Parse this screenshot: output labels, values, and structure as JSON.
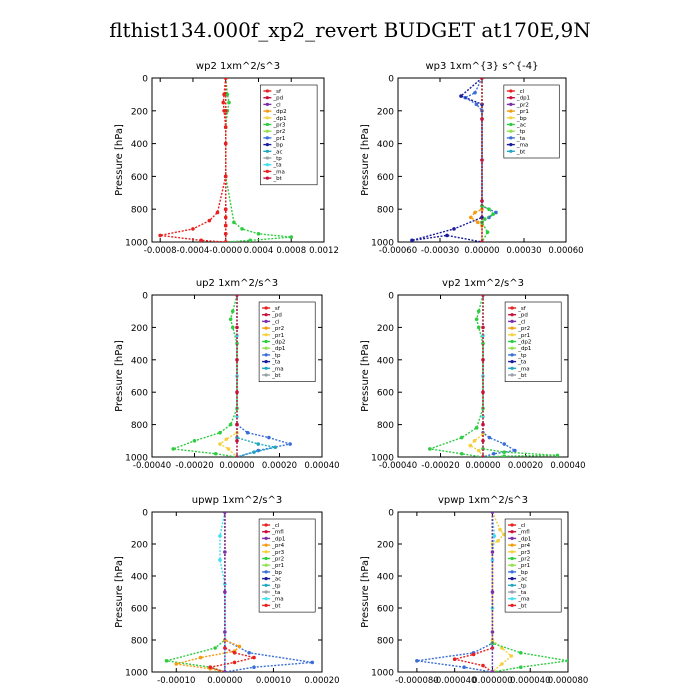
{
  "title": "flthist134.000f_xp2_revert  BUDGET at170E,9N",
  "colors": {
    "red": "#e8201f",
    "darkred": "#c8103a",
    "purple": "#7b2fa8",
    "orange": "#f39c12",
    "yellow": "#f4d03f",
    "green": "#2ecc40",
    "lightgreen": "#90e050",
    "blue": "#3a6fd8",
    "navy": "#1a1a9c",
    "teal": "#20a8c0",
    "cyan": "#40e0f0",
    "gray": "#9aa0a6"
  },
  "chart_data": [
    {
      "type": "line",
      "title": "wp2   1xm^2/s^3",
      "ylabel": "Pressure  [hPa]",
      "ylim": [
        1000,
        0
      ],
      "yticks": [
        "0",
        "200",
        "400",
        "600",
        "800",
        "1000"
      ],
      "xlim": [
        -0.0009,
        0.0012
      ],
      "xticks": [
        -0.0008,
        -0.0004,
        0.0,
        0.0004,
        0.0008,
        0.0012
      ],
      "xticklabels": [
        "-0.0008",
        "-0.0004",
        "-0.0000",
        "0.0004",
        "0.0008",
        "0.0012"
      ],
      "legend": [
        "_sf",
        "_pd",
        "_cl",
        "_dp2",
        "_dp1",
        "_pr3",
        "_pr2",
        "_pr1",
        "_bp",
        "_ac",
        "_tp",
        "_ta",
        "_ma",
        "_bt"
      ],
      "series": [
        {
          "name": "_bt",
          "color": "cyan",
          "x": [
            0,
            0,
            0,
            0,
            0,
            0
          ],
          "y": [
            0,
            200,
            400,
            600,
            800,
            1000
          ]
        },
        {
          "name": "_pd",
          "color": "darkred",
          "x": [
            0,
            0,
            0,
            0,
            0,
            0,
            0,
            0
          ],
          "y": [
            0,
            200,
            400,
            600,
            800,
            900,
            950,
            1000
          ]
        },
        {
          "name": "_dp1",
          "color": "green",
          "x": [
            0,
            2e-05,
            4e-05,
            2e-05,
            0,
            0,
            0.0001,
            0.0002,
            0.0004,
            0.0008,
            0.0003,
            0
          ],
          "y": [
            0,
            100,
            150,
            200,
            300,
            600,
            880,
            920,
            950,
            970,
            990,
            1000
          ]
        },
        {
          "name": "_dp2",
          "color": "red",
          "x": [
            0,
            -2e-05,
            -3e-05,
            -2e-05,
            0,
            0,
            -0.0001,
            -0.0002,
            -0.0004,
            -0.0008,
            -0.0003,
            0
          ],
          "y": [
            0,
            100,
            150,
            200,
            300,
            600,
            820,
            870,
            920,
            960,
            990,
            1000
          ]
        },
        {
          "name": "_sf",
          "color": "red",
          "x": [
            0,
            0,
            0,
            0,
            0,
            0,
            0,
            0,
            0
          ],
          "y": [
            0,
            200,
            400,
            600,
            800,
            850,
            900,
            950,
            1000
          ]
        }
      ]
    },
    {
      "type": "line",
      "title": "wp3   1xm^{3} s^{-4}",
      "ylabel": "Pressure  [hPa]",
      "ylim": [
        1000,
        0
      ],
      "yticks": [
        "0",
        "200",
        "400",
        "600",
        "800",
        "1000"
      ],
      "xlim": [
        -0.0006,
        0.0006
      ],
      "xticks": [
        -0.0006,
        -0.0003,
        0.0,
        0.0003,
        0.0006
      ],
      "xticklabels": [
        "-0.00060",
        "-0.00030",
        "0.00000",
        "0.00030",
        "0.00060"
      ],
      "legend": [
        "_cl",
        "_dp1",
        "_pr2",
        "_pr1",
        "_bp",
        "_ac",
        "_tp",
        "_ta",
        "_ma",
        "_bt"
      ],
      "series": [
        {
          "name": "_bt",
          "color": "cyan",
          "x": [
            0,
            0,
            0,
            0,
            0
          ],
          "y": [
            0,
            250,
            500,
            750,
            1000
          ]
        },
        {
          "name": "_tp",
          "color": "blue",
          "x": [
            0,
            -5e-05,
            -0.00012,
            -4e-05,
            0,
            0,
            0.0001,
            5e-05,
            0
          ],
          "y": [
            0,
            90,
            120,
            160,
            200,
            780,
            820,
            850,
            880
          ]
        },
        {
          "name": "_ta",
          "color": "navy",
          "x": [
            0,
            -0.00015,
            0,
            0,
            -0.0002,
            -0.0005,
            -0.00025,
            0
          ],
          "y": [
            0,
            110,
            160,
            850,
            920,
            990,
            960,
            1000
          ]
        },
        {
          "name": "_pr1",
          "color": "orange",
          "x": [
            0,
            0,
            -5e-05,
            -8e-05,
            -3e-05,
            0,
            0
          ],
          "y": [
            0,
            800,
            820,
            850,
            880,
            900,
            1000
          ]
        },
        {
          "name": "_ac",
          "color": "green",
          "x": [
            0,
            0,
            5e-05,
            8e-05,
            2e-05,
            0,
            4e-05,
            0
          ],
          "y": [
            0,
            780,
            800,
            830,
            860,
            880,
            940,
            1000
          ]
        },
        {
          "name": "_cl",
          "color": "darkred",
          "x": [
            0,
            0,
            0,
            0,
            0
          ],
          "y": [
            0,
            250,
            500,
            750,
            1000
          ]
        }
      ]
    },
    {
      "type": "line",
      "title": "up2   1xm^2/s^3",
      "ylabel": "Pressure  [hPa]",
      "ylim": [
        1000,
        0
      ],
      "yticks": [
        "0",
        "200",
        "400",
        "600",
        "800",
        "1000"
      ],
      "xlim": [
        -0.0004,
        0.0004
      ],
      "xticks": [
        -0.0004,
        -0.0002,
        0.0,
        0.0002,
        0.0004
      ],
      "xticklabels": [
        "-0.00040",
        "-0.00020",
        "0.00000",
        "0.00020",
        "0.00040"
      ],
      "legend": [
        "_sf",
        "_pd",
        "_cl",
        "_pr2",
        "_pr1",
        "_dp2",
        "_dp1",
        "_tp",
        "_ta",
        "_ma",
        "_bt"
      ],
      "series": [
        {
          "name": "_dp1",
          "color": "green",
          "x": [
            0,
            -2e-05,
            -3e-05,
            -2e-05,
            0,
            0,
            -3e-05,
            -8e-05,
            -0.0002,
            -0.0003,
            -0.0001,
            0
          ],
          "y": [
            0,
            100,
            150,
            200,
            300,
            700,
            800,
            850,
            900,
            950,
            980,
            1000
          ]
        },
        {
          "name": "_tp",
          "color": "blue",
          "x": [
            0,
            0,
            5e-05,
            0.00015,
            0.00025,
            0.0001,
            0
          ],
          "y": [
            0,
            800,
            850,
            880,
            920,
            960,
            1000
          ]
        },
        {
          "name": "_pr1",
          "color": "yellow",
          "x": [
            0,
            0,
            -5e-05,
            -8e-05,
            -4e-05,
            0
          ],
          "y": [
            0,
            850,
            890,
            920,
            950,
            1000
          ]
        },
        {
          "name": "_ta",
          "color": "teal",
          "x": [
            0,
            0,
            0.0001,
            0.00018,
            8e-05,
            0
          ],
          "y": [
            0,
            880,
            920,
            940,
            970,
            1000
          ]
        },
        {
          "name": "_bt",
          "color": "cyan",
          "x": [
            0,
            0,
            0,
            0,
            0
          ],
          "y": [
            0,
            250,
            500,
            750,
            1000
          ]
        },
        {
          "name": "_pd",
          "color": "darkred",
          "x": [
            0,
            0,
            0,
            0,
            0,
            0,
            0
          ],
          "y": [
            0,
            200,
            400,
            600,
            800,
            900,
            1000
          ]
        }
      ]
    },
    {
      "type": "line",
      "title": "vp2   1xm^2/s^3",
      "ylabel": "Pressure  [hPa]",
      "ylim": [
        1000,
        0
      ],
      "yticks": [
        "0",
        "200",
        "400",
        "600",
        "800",
        "1000"
      ],
      "xlim": [
        -0.0004,
        0.0004
      ],
      "xticks": [
        -0.0004,
        -0.0002,
        0.0,
        0.0002,
        0.0004
      ],
      "xticklabels": [
        "-0.00040",
        "-0.00020",
        "0.00000",
        "0.00020",
        "0.00040"
      ],
      "legend": [
        "_sf",
        "_pd",
        "_cl",
        "_pr2",
        "_pr1",
        "_dp2",
        "_dp1",
        "_tp",
        "_ta",
        "_ma",
        "_bt"
      ],
      "series": [
        {
          "name": "_dp1",
          "color": "green",
          "x": [
            0,
            -2e-05,
            -3e-05,
            -2e-05,
            0,
            0,
            -3e-05,
            -0.0001,
            -0.00025,
            -0.0001,
            0
          ],
          "y": [
            0,
            100,
            150,
            200,
            300,
            700,
            820,
            880,
            950,
            980,
            1000
          ]
        },
        {
          "name": "_tp",
          "color": "blue",
          "x": [
            0,
            0,
            3e-05,
            0.0001,
            0.00015,
            5e-05,
            0
          ],
          "y": [
            0,
            850,
            880,
            920,
            960,
            980,
            1000
          ]
        },
        {
          "name": "_pr1",
          "color": "yellow",
          "x": [
            0,
            0,
            -4e-05,
            -6e-05,
            -2e-05,
            0
          ],
          "y": [
            0,
            860,
            900,
            930,
            960,
            1000
          ]
        },
        {
          "name": "_ac",
          "color": "green",
          "x": [
            0,
            0,
            0.0001,
            0.00035,
            0.0001,
            0
          ],
          "y": [
            0,
            950,
            970,
            990,
            995,
            1000
          ]
        },
        {
          "name": "_bt",
          "color": "cyan",
          "x": [
            0,
            0,
            0,
            0,
            0
          ],
          "y": [
            0,
            250,
            500,
            750,
            1000
          ]
        },
        {
          "name": "_pd",
          "color": "darkred",
          "x": [
            0,
            0,
            0,
            0,
            0,
            0,
            0
          ],
          "y": [
            0,
            200,
            400,
            600,
            800,
            900,
            1000
          ]
        }
      ]
    },
    {
      "type": "line",
      "title": "upwp   1xm^2/s^3",
      "ylabel": "Pressure  [hPa]",
      "ylim": [
        1000,
        0
      ],
      "yticks": [
        "0",
        "200",
        "400",
        "600",
        "800",
        "1000"
      ],
      "xlim": [
        -0.00015,
        0.0002
      ],
      "xticks": [
        -0.0001,
        0.0,
        0.0001,
        0.0002
      ],
      "xticklabels": [
        "-0.00010",
        "0.00000",
        "0.00010",
        "0.00020"
      ],
      "legend": [
        "_cl",
        "_mfl",
        "_dp1",
        "_pr4",
        "_pr3",
        "_pr2",
        "_pr1",
        "_bp",
        "_ac",
        "_tp",
        "_ta",
        "_ma",
        "_bt"
      ],
      "series": [
        {
          "name": "_bt",
          "color": "cyan",
          "x": [
            0,
            -1e-05,
            -1e-05,
            0,
            0
          ],
          "y": [
            0,
            150,
            300,
            450,
            1000
          ]
        },
        {
          "name": "_ac",
          "color": "green",
          "x": [
            0,
            0,
            -2e-05,
            -0.00012,
            -3e-05,
            0
          ],
          "y": [
            0,
            800,
            850,
            930,
            970,
            1000
          ]
        },
        {
          "name": "_tp",
          "color": "blue",
          "x": [
            0,
            0,
            5e-05,
            0.00018,
            6e-05,
            0
          ],
          "y": [
            0,
            800,
            880,
            940,
            970,
            1000
          ]
        },
        {
          "name": "_pr1",
          "color": "orange",
          "x": [
            0,
            0,
            3e-05,
            2e-05,
            -5e-05,
            -0.0001,
            -3e-05,
            0
          ],
          "y": [
            0,
            800,
            840,
            870,
            910,
            950,
            980,
            1000
          ]
        },
        {
          "name": "_dp1",
          "color": "red",
          "x": [
            0,
            0,
            2e-05,
            6e-05,
            2e-05,
            -3e-05,
            0
          ],
          "y": [
            0,
            850,
            880,
            910,
            940,
            970,
            1000
          ]
        },
        {
          "name": "_cl",
          "color": "purple",
          "x": [
            0,
            0,
            0,
            0,
            0
          ],
          "y": [
            0,
            250,
            500,
            750,
            1000
          ]
        }
      ]
    },
    {
      "type": "line",
      "title": "vpwp   1xm^2/s^3",
      "ylabel": "Pressure  [hPa]",
      "ylim": [
        1000,
        0
      ],
      "yticks": [
        "0",
        "200",
        "400",
        "600",
        "800",
        "1000"
      ],
      "xlim": [
        -0.0001,
        8e-05
      ],
      "xticks": [
        -8e-05,
        -4e-05,
        0.0,
        4e-05,
        8e-05
      ],
      "xticklabels": [
        "-0.000080",
        "-0.000040",
        "0.000000",
        "0.000040",
        "0.000080"
      ],
      "legend": [
        "_cl",
        "_mfl",
        "_dp1",
        "_pr4",
        "_pr3",
        "_pr2",
        "_pr1",
        "_bp",
        "_ac",
        "_tp",
        "_ta",
        "_ma",
        "_bt"
      ],
      "series": [
        {
          "name": "_pr1",
          "color": "yellow",
          "x": [
            0,
            8e-06,
            1.2e-05,
            6e-06,
            0,
            0,
            1e-05,
            2e-05,
            1e-05,
            0
          ],
          "y": [
            0,
            110,
            140,
            180,
            200,
            800,
            850,
            900,
            950,
            1000
          ]
        },
        {
          "name": "_tp",
          "color": "blue",
          "x": [
            0,
            0,
            -2e-05,
            -8e-05,
            -3e-05,
            0
          ],
          "y": [
            0,
            820,
            880,
            930,
            970,
            1000
          ]
        },
        {
          "name": "_ac",
          "color": "green",
          "x": [
            0,
            0,
            3e-05,
            8e-05,
            3e-05,
            0
          ],
          "y": [
            0,
            820,
            880,
            930,
            970,
            1000
          ]
        },
        {
          "name": "_dp1",
          "color": "red",
          "x": [
            0,
            0,
            -2e-05,
            -4e-05,
            -1e-05,
            0
          ],
          "y": [
            0,
            850,
            890,
            920,
            960,
            1000
          ]
        },
        {
          "name": "_bt",
          "color": "cyan",
          "x": [
            0,
            2e-06,
            0,
            0,
            0
          ],
          "y": [
            0,
            150,
            300,
            600,
            1000
          ]
        },
        {
          "name": "_cl",
          "color": "purple",
          "x": [
            0,
            0,
            0,
            0,
            0
          ],
          "y": [
            0,
            250,
            500,
            750,
            1000
          ]
        }
      ]
    }
  ]
}
